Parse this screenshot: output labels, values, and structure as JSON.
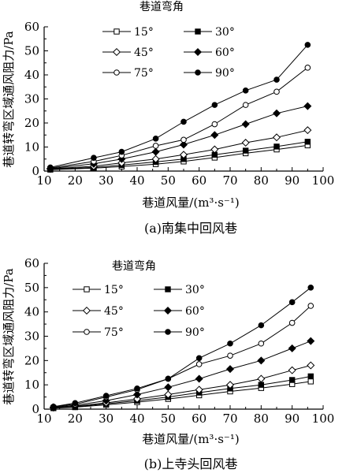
{
  "chart_data": [
    {
      "type": "line",
      "caption": "(a)南集中回风巷",
      "xlabel": "巷道风量/(m³·s⁻¹)",
      "ylabel": "巷道转弯区域通风阻力/Pa",
      "xlim": [
        10,
        100
      ],
      "ylim": [
        0,
        60
      ],
      "xticks": [
        "10",
        "20",
        "30",
        "40",
        "50",
        "60",
        "70",
        "80",
        "90",
        "100"
      ],
      "yticks": [
        "0",
        "10",
        "20",
        "30",
        "40",
        "50",
        "60"
      ],
      "legend_title": "巷道弯角",
      "legend_position": "top-left",
      "grid": false,
      "x": [
        12,
        26,
        35,
        46,
        55,
        65,
        75,
        85,
        95
      ],
      "series": [
        {
          "name": "15°",
          "marker": "square-open",
          "values": [
            0.6,
            1.2,
            1.9,
            2.9,
            4.0,
            5.6,
            7.4,
            9.0,
            10.7
          ]
        },
        {
          "name": "30°",
          "marker": "square-filled",
          "values": [
            0.8,
            1.5,
            2.5,
            3.8,
            5.0,
            6.8,
            8.5,
            10.2,
            12.2
          ]
        },
        {
          "name": "45°",
          "marker": "diamond-open",
          "values": [
            0.9,
            2.0,
            3.4,
            5.0,
            6.8,
            9.0,
            11.8,
            14.0,
            17.0
          ]
        },
        {
          "name": "60°",
          "marker": "diamond-filled",
          "values": [
            1.0,
            3.0,
            5.0,
            8.0,
            11.0,
            15.0,
            19.5,
            24.0,
            27.0
          ]
        },
        {
          "name": "75°",
          "marker": "circle-open",
          "values": [
            1.2,
            4.0,
            6.5,
            10.5,
            13.0,
            19.5,
            27.5,
            33.0,
            43.0
          ]
        },
        {
          "name": "90°",
          "marker": "circle-filled",
          "values": [
            1.5,
            5.5,
            8.0,
            13.5,
            20.5,
            27.5,
            33.5,
            38.0,
            52.5
          ]
        }
      ]
    },
    {
      "type": "line",
      "caption": "(b)上寺头回风巷",
      "xlabel": "巷道风量/(m³·s⁻¹)",
      "ylabel": "巷道转弯区域通风阻力/Pa",
      "xlim": [
        10,
        100
      ],
      "ylim": [
        0,
        60
      ],
      "xticks": [
        "10",
        "20",
        "30",
        "40",
        "50",
        "60",
        "70",
        "80",
        "90",
        "100"
      ],
      "yticks": [
        "0",
        "10",
        "20",
        "30",
        "40",
        "50",
        "60"
      ],
      "legend_title": "巷道弯角",
      "legend_position": "top-left",
      "grid": false,
      "x": [
        13,
        20,
        30,
        40,
        50,
        60,
        70,
        80,
        90,
        96
      ],
      "series": [
        {
          "name": "15°",
          "marker": "square-open",
          "values": [
            0.4,
            0.8,
            1.8,
            2.9,
            4.2,
            5.7,
            7.3,
            8.7,
            10.3,
            11.4
          ]
        },
        {
          "name": "30°",
          "marker": "square-filled",
          "values": [
            0.5,
            1.0,
            2.2,
            3.5,
            5.0,
            6.8,
            8.5,
            10.0,
            12.0,
            13.5
          ]
        },
        {
          "name": "45°",
          "marker": "diamond-open",
          "values": [
            0.6,
            1.2,
            2.6,
            4.2,
            6.0,
            8.0,
            10.0,
            12.5,
            16.0,
            18.0
          ]
        },
        {
          "name": "60°",
          "marker": "diamond-filled",
          "values": [
            0.8,
            1.6,
            3.5,
            6.0,
            9.0,
            12.5,
            16.5,
            20.0,
            25.0,
            28.0
          ]
        },
        {
          "name": "75°",
          "marker": "circle-open",
          "values": [
            1.0,
            2.0,
            5.0,
            8.0,
            12.5,
            18.5,
            22.0,
            27.0,
            35.5,
            42.5
          ]
        },
        {
          "name": "90°",
          "marker": "circle-filled",
          "values": [
            1.0,
            2.5,
            5.5,
            8.5,
            12.5,
            21.0,
            27.0,
            34.5,
            44.0,
            50.0
          ]
        }
      ]
    }
  ]
}
